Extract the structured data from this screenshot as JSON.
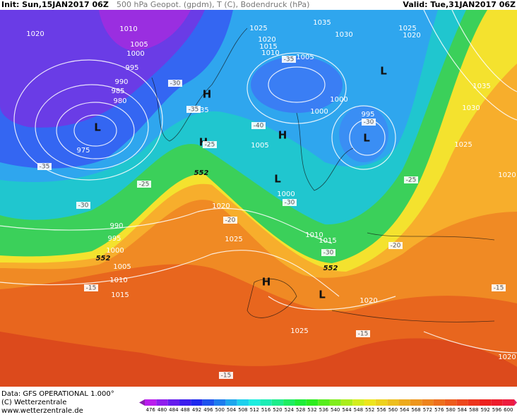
{
  "header": {
    "init": "Init: Sun,15JAN2017 06Z",
    "title": "500 hPa Geopot. (gpdm), T (C), Bodendruck (hPa)",
    "valid": "Valid: Tue,31JAN2017 06Z"
  },
  "footer": {
    "data": "Data: GFS OPERATIONAL 1.000°",
    "copyright": "(C) Wetterzentrale",
    "url": "www.wetterzentrale.de"
  },
  "colorbar": {
    "labels": [
      476,
      480,
      484,
      488,
      492,
      496,
      500,
      504,
      508,
      512,
      516,
      520,
      524,
      528,
      532,
      536,
      540,
      544,
      548,
      552,
      556,
      560,
      564,
      568,
      572,
      576,
      580,
      584,
      588,
      592,
      596,
      600
    ]
  },
  "pressure_labels": [
    "1020",
    "1010",
    "1005",
    "1000",
    "995",
    "990",
    "985",
    "980",
    "975",
    "1025",
    "1020",
    "1015",
    "1010",
    "1005",
    "1035",
    "1030",
    "1025",
    "1020",
    "1000",
    "1000",
    "995",
    "1005",
    "1000",
    "1035",
    "1030",
    "1025",
    "1020",
    "1020",
    "1025",
    "990",
    "995",
    "1000",
    "1005",
    "1010",
    "1015",
    "1010",
    "1015",
    "1020",
    "1025",
    "1020",
    "1035"
  ],
  "centers": [
    "H",
    "H",
    "H",
    "L",
    "L",
    "L",
    "L",
    "H",
    "L"
  ],
  "temperature_labels": [
    "-30",
    "-40",
    "-35",
    "-25",
    "-30",
    "-25",
    "-20",
    "-35",
    "-30",
    "-30",
    "-25",
    "-30",
    "-20",
    "-15",
    "-15",
    "-15",
    "-15",
    "-35"
  ],
  "height_labels": [
    "552",
    "552",
    "552"
  ]
}
